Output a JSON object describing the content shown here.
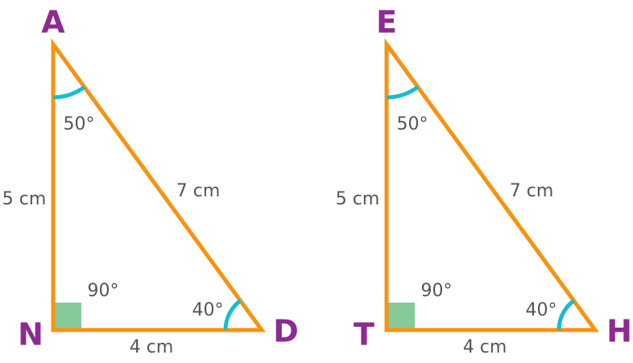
{
  "triangles": [
    {
      "vertices": [
        "A",
        "N",
        "D"
      ],
      "sides": [
        "5 cm",
        "7 cm",
        "4 cm"
      ],
      "angles": [
        "50°",
        "90°",
        "40°"
      ]
    },
    {
      "vertices": [
        "E",
        "T",
        "H"
      ],
      "sides": [
        "5 cm",
        "7 cm",
        "4 cm"
      ],
      "angles": [
        "50°",
        "90°",
        "40°"
      ]
    }
  ]
}
